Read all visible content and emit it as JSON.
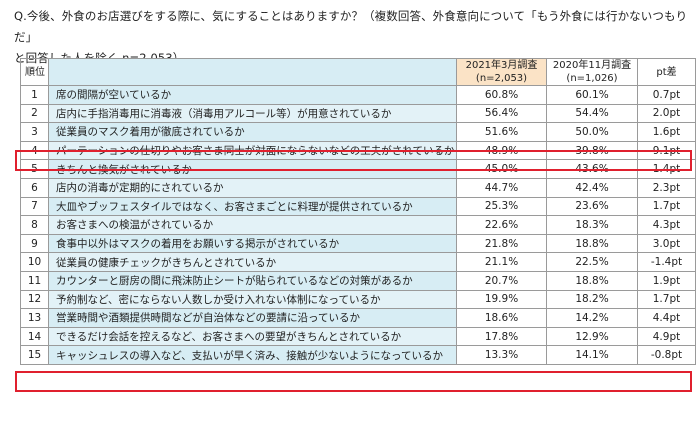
{
  "question_line1": "Q.今後、外食のお店選びをする際に、気にすることはありますか？（複数回答、外食意向について「もう外食には行かないつもりだ」",
  "question_line2": "と回答した人を除く n=2,053）",
  "header": {
    "rank": "順位",
    "item": "",
    "col2021_line1": "2021年3月調査",
    "col2021_line2": "(n=2,053)",
    "col2020_line1": "2020年11月調査",
    "col2020_line2": "(n=1,026)",
    "diff": "pt差"
  },
  "rows": [
    {
      "rank": "1",
      "item": "席の間隔が空いているか",
      "v2021": "60.8%",
      "v2020": "60.1%",
      "diff": "0.7pt"
    },
    {
      "rank": "2",
      "item": "店内に手指消毒用に消毒液（消毒用アルコール等）が用意されているか",
      "v2021": "56.4%",
      "v2020": "54.4%",
      "diff": "2.0pt"
    },
    {
      "rank": "3",
      "item": "従業員のマスク着用が徹底されているか",
      "v2021": "51.6%",
      "v2020": "50.0%",
      "diff": "1.6pt"
    },
    {
      "rank": "4",
      "item": "パーテーションの仕切りやお客さま同士が対面にならないなどの工夫がされているか",
      "v2021": "48.9%",
      "v2020": "39.8%",
      "diff": "9.1pt"
    },
    {
      "rank": "5",
      "item": "きちんと換気がされているか",
      "v2021": "45.0%",
      "v2020": "43.6%",
      "diff": "1.4pt"
    },
    {
      "rank": "6",
      "item": "店内の消毒が定期的にされているか",
      "v2021": "44.7%",
      "v2020": "42.4%",
      "diff": "2.3pt"
    },
    {
      "rank": "7",
      "item": "大皿やブッフェスタイルではなく、お客さまごとに料理が提供されているか",
      "v2021": "25.3%",
      "v2020": "23.6%",
      "diff": "1.7pt"
    },
    {
      "rank": "8",
      "item": "お客さまへの検温がされているか",
      "v2021": "22.6%",
      "v2020": "18.3%",
      "diff": "4.3pt"
    },
    {
      "rank": "9",
      "item": "食事中以外はマスクの着用をお願いする掲示がされているか",
      "v2021": "21.8%",
      "v2020": "18.8%",
      "diff": "3.0pt"
    },
    {
      "rank": "10",
      "item": "従業員の健康チェックがきちんとされているか",
      "v2021": "21.1%",
      "v2020": "22.5%",
      "diff": "-1.4pt"
    },
    {
      "rank": "11",
      "item": "カウンターと厨房の間に飛沫防止シートが貼られているなどの対策があるか",
      "v2021": "20.7%",
      "v2020": "18.8%",
      "diff": "1.9pt"
    },
    {
      "rank": "12",
      "item": "予約制など、密にならない人数しか受け入れない体制になっているか",
      "v2021": "19.9%",
      "v2020": "18.2%",
      "diff": "1.7pt"
    },
    {
      "rank": "13",
      "item": "営業時間や酒類提供時間などが自治体などの要請に沿っているか",
      "v2021": "18.6%",
      "v2020": "14.2%",
      "diff": "4.4pt"
    },
    {
      "rank": "14",
      "item": "できるだけ会話を控えるなど、お客さまへの要望がきちんとされているか",
      "v2021": "17.8%",
      "v2020": "12.9%",
      "diff": "4.9pt"
    },
    {
      "rank": "15",
      "item": "キャッシュレスの導入など、支払いが早く済み、接触が少ないようになっているか",
      "v2021": "13.3%",
      "v2020": "14.1%",
      "diff": "-0.8pt"
    }
  ],
  "highlight_color": "#e0202e"
}
